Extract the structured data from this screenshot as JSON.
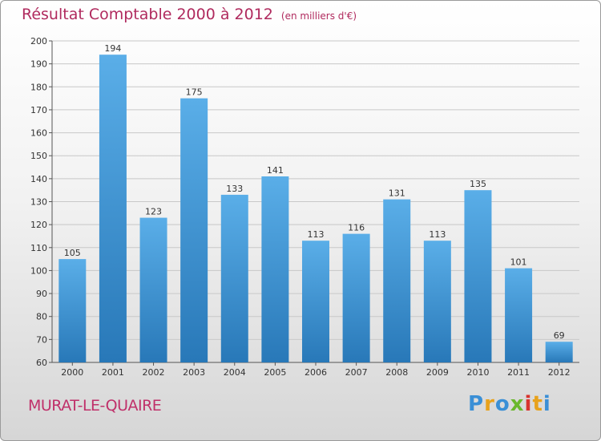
{
  "header": {
    "title": "Résultat Comptable 2000 à 2012",
    "subtitle": "(en milliers d'€)"
  },
  "footer": {
    "city": "MURAT-LE-QUAIRE",
    "logo_letters": [
      "P",
      "r",
      "o",
      "x",
      "i",
      "t",
      "i"
    ],
    "logo_colors": [
      "#3a8fd6",
      "#e8a21c",
      "#3a8fd6",
      "#6ab82c",
      "#d8332e",
      "#e8a21c",
      "#3a8fd6"
    ]
  },
  "chart_data": {
    "type": "bar",
    "title": "Résultat Comptable 2000 à 2012",
    "subtitle": "(en milliers d'€)",
    "categories": [
      "2000",
      "2001",
      "2002",
      "2003",
      "2004",
      "2005",
      "2006",
      "2007",
      "2008",
      "2009",
      "2010",
      "2011",
      "2012"
    ],
    "values": [
      105,
      194,
      123,
      175,
      133,
      141,
      113,
      116,
      131,
      113,
      135,
      101,
      69
    ],
    "ylim": [
      60,
      200
    ],
    "yticks": [
      60,
      70,
      80,
      90,
      100,
      110,
      120,
      130,
      140,
      150,
      160,
      170,
      180,
      190,
      200
    ],
    "grid": true,
    "bar_color_top": "#5aaee8",
    "bar_color_bottom": "#2878b8"
  }
}
